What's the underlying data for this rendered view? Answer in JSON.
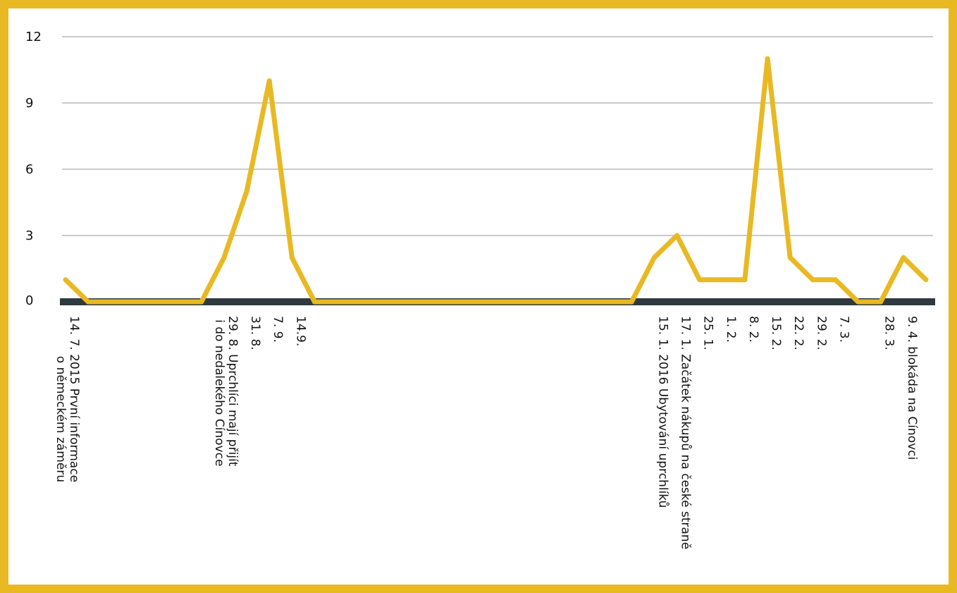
{
  "chart_data": {
    "type": "line",
    "title": "",
    "xlabel": "",
    "ylabel": "",
    "ylim": [
      0,
      12
    ],
    "yticks": [
      0,
      3,
      6,
      9,
      12
    ],
    "grid": true,
    "legend": "none",
    "line_color": "#e8b923",
    "baseline_color": "#2e3a3f",
    "frame_color": "#e8b923",
    "series": [
      {
        "values": [
          1,
          0,
          0,
          0,
          0,
          0,
          0,
          2,
          5,
          10,
          2,
          0,
          0,
          0,
          0,
          0,
          0,
          0,
          0,
          0,
          0,
          0,
          0,
          0,
          0,
          0,
          2,
          3,
          1,
          1,
          1,
          11,
          2,
          1,
          1,
          0,
          0,
          2,
          1
        ]
      }
    ],
    "x_labels": [
      {
        "i": 0,
        "lines": [
          "14. 7. 2015 První informace",
          "o německém záměru"
        ]
      },
      {
        "i": 7,
        "lines": [
          "29. 8. Uprchlíci mají přijít",
          "i do nedalekého Cínovce"
        ]
      },
      {
        "i": 8,
        "lines": [
          "31. 8."
        ]
      },
      {
        "i": 9,
        "lines": [
          "7. 9."
        ]
      },
      {
        "i": 10,
        "lines": [
          "14.9."
        ]
      },
      {
        "i": 26,
        "lines": [
          "15. 1. 2016 Ubytování uprchlíků"
        ]
      },
      {
        "i": 27,
        "lines": [
          "17. 1. Začátek nákupů na české straně"
        ]
      },
      {
        "i": 28,
        "lines": [
          "25. 1."
        ]
      },
      {
        "i": 29,
        "lines": [
          "1. 2."
        ]
      },
      {
        "i": 30,
        "lines": [
          "8. 2."
        ]
      },
      {
        "i": 31,
        "lines": [
          "15. 2."
        ]
      },
      {
        "i": 32,
        "lines": [
          "22. 2."
        ]
      },
      {
        "i": 33,
        "lines": [
          "29. 2."
        ]
      },
      {
        "i": 34,
        "lines": [
          "7. 3."
        ]
      },
      {
        "i": 36,
        "lines": [
          "28. 3."
        ]
      },
      {
        "i": 37,
        "lines": [
          "9. 4. blokáda na Cínovci"
        ]
      }
    ]
  }
}
